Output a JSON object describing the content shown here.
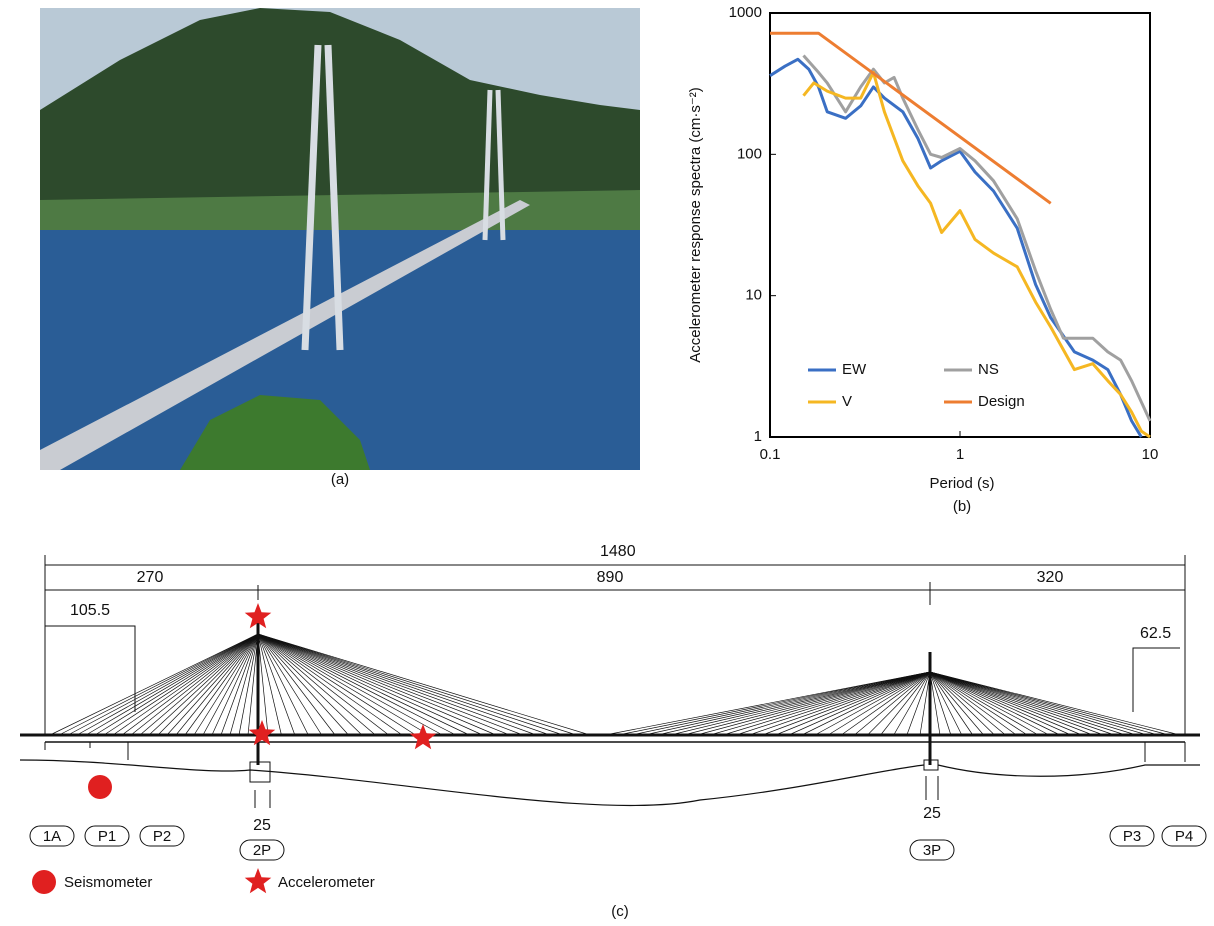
{
  "panel_labels": [
    "(a)",
    "(b)",
    "(c)"
  ],
  "chart_data": {
    "type": "line",
    "xlabel": "Period (s)",
    "ylabel": "Accelerometer response spectra (cm·s⁻²)",
    "xscale": "log",
    "yscale": "log",
    "xlim": [
      0.1,
      10
    ],
    "ylim": [
      1,
      1000
    ],
    "xticks": [
      0.1,
      1,
      10
    ],
    "yticks": [
      1,
      10,
      100,
      1000
    ],
    "grid": false,
    "legend": "lower left",
    "series": [
      {
        "name": "EW",
        "color": "#3a6fc4",
        "x": [
          0.1,
          0.12,
          0.14,
          0.16,
          0.18,
          0.2,
          0.25,
          0.3,
          0.35,
          0.4,
          0.5,
          0.6,
          0.7,
          0.8,
          1.0,
          1.2,
          1.5,
          2,
          2.5,
          3,
          4,
          5,
          6,
          7,
          8,
          9
        ],
        "values": [
          360,
          420,
          470,
          400,
          300,
          200,
          180,
          220,
          300,
          250,
          200,
          130,
          80,
          90,
          105,
          75,
          55,
          30,
          12,
          7,
          4,
          3.5,
          3,
          2,
          1.3,
          1
        ]
      },
      {
        "name": "NS",
        "color": "#a0a0a0",
        "x": [
          0.15,
          0.18,
          0.2,
          0.25,
          0.3,
          0.35,
          0.4,
          0.45,
          0.5,
          0.6,
          0.7,
          0.8,
          1.0,
          1.2,
          1.5,
          2,
          2.5,
          3,
          3.5,
          4,
          5,
          6,
          7,
          8,
          10
        ],
        "values": [
          500,
          380,
          320,
          200,
          300,
          400,
          320,
          350,
          250,
          150,
          100,
          95,
          110,
          90,
          65,
          35,
          15,
          8,
          5,
          5,
          5,
          4,
          3.5,
          2.5,
          1.3
        ]
      },
      {
        "name": "V",
        "color": "#f5b722",
        "x": [
          0.15,
          0.17,
          0.2,
          0.25,
          0.3,
          0.35,
          0.4,
          0.5,
          0.6,
          0.7,
          0.8,
          1.0,
          1.2,
          1.5,
          2,
          2.5,
          3,
          4,
          5,
          6,
          7,
          8,
          9,
          10
        ],
        "values": [
          260,
          320,
          280,
          250,
          250,
          380,
          200,
          90,
          60,
          45,
          28,
          40,
          25,
          20,
          16,
          9,
          6,
          3,
          3.3,
          2.5,
          2,
          1.5,
          1.1,
          1
        ]
      },
      {
        "name": "Design",
        "color": "#ed7d31",
        "x": [
          0.1,
          0.18,
          3
        ],
        "values": [
          720,
          720,
          45
        ]
      }
    ]
  },
  "diagram": {
    "dimensions": {
      "total": 1480,
      "left_span": 270,
      "main_span": 890,
      "right_span": 320,
      "left_anchor": 105.5,
      "right_anchor": 62.5,
      "tower_2p": 25,
      "tower_3p": 25
    },
    "piers": [
      "1A",
      "P1",
      "P2",
      "2P",
      "3P",
      "P3",
      "P4"
    ],
    "legend": [
      "Seismometer",
      "Accelerometer"
    ]
  }
}
